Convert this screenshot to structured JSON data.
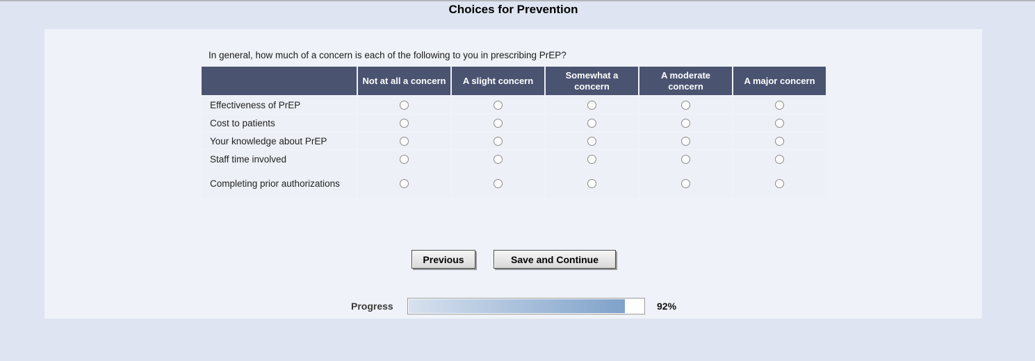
{
  "page": {
    "title": "Choices for Prevention"
  },
  "survey": {
    "question": "In general, how much of a concern is each of the following to you in prescribing PrEP?",
    "table": {
      "columns": [
        "Not at all a concern",
        "A slight concern",
        "Somewhat a concern",
        "A moderate concern",
        "A major concern"
      ],
      "rows": [
        {
          "label": "Effectiveness of PrEP"
        },
        {
          "label": "Cost to patients"
        },
        {
          "label": "Your knowledge about PrEP"
        },
        {
          "label": "Staff time involved"
        },
        {
          "label": "Completing prior authorizations"
        }
      ],
      "selected": null
    },
    "buttons": {
      "previous": "Previous",
      "save_continue": "Save and Continue"
    },
    "progress": {
      "label": "Progress",
      "percent": 92,
      "percent_text": "92%"
    }
  },
  "colors": {
    "page_bg": "#dee4f1",
    "panel_bg": "#eff2f8",
    "table_header_bg": "#4a5471",
    "table_cell_bg": "#edf0f6",
    "progress_fill_start": "#d7e1ee",
    "progress_fill_end": "#7fa2ca"
  }
}
